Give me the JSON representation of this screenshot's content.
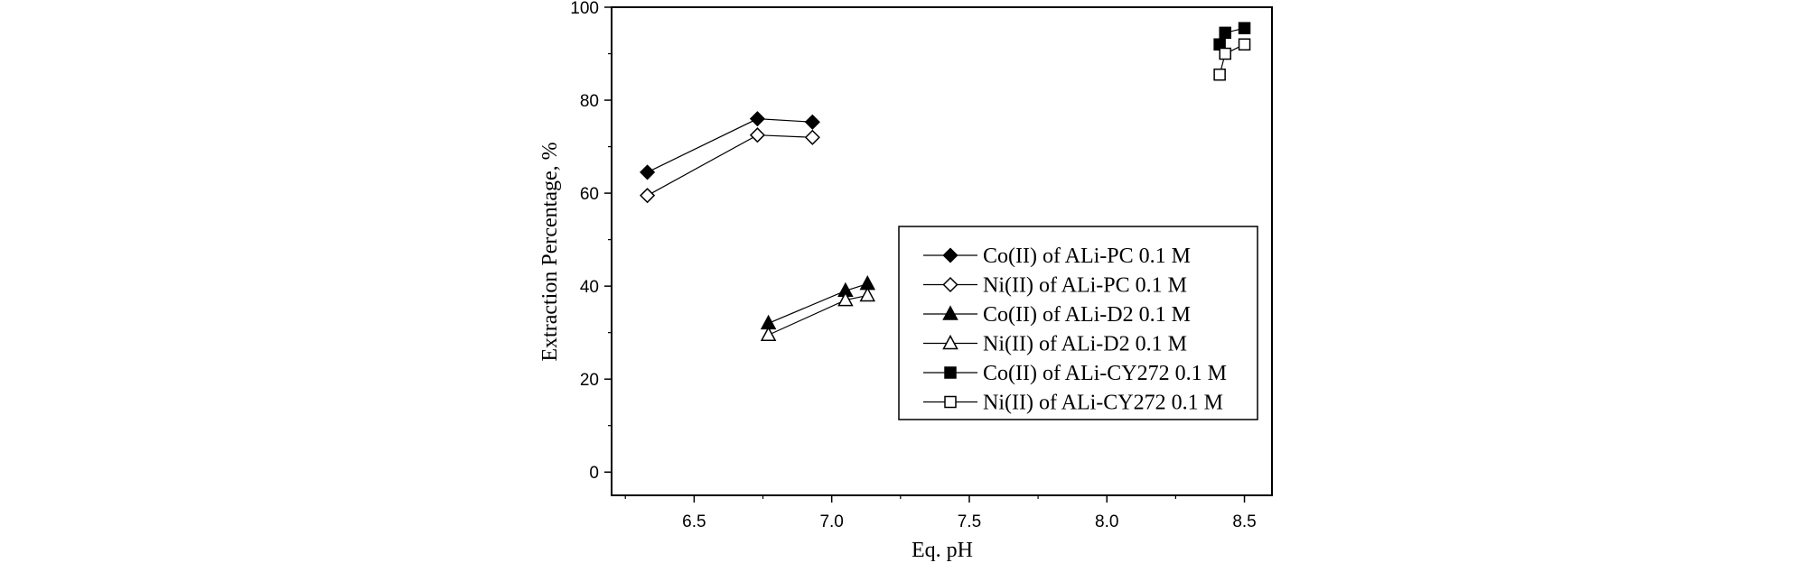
{
  "chart_data": {
    "type": "line",
    "title": "",
    "xlabel": "Eq. pH",
    "ylabel": "Extraction Percentage, %",
    "xlim": [
      6.2,
      8.6
    ],
    "ylim": [
      -5,
      100
    ],
    "xticks": [
      6.5,
      7.0,
      7.5,
      8.0,
      8.5
    ],
    "xtick_labels": [
      "6.5",
      "7.0",
      "7.5",
      "8.0",
      "8.5"
    ],
    "yticks": [
      0,
      20,
      40,
      60,
      80,
      100
    ],
    "ytick_labels": [
      "0",
      "20",
      "40",
      "60",
      "80",
      "100"
    ],
    "grid": false,
    "legend_position": "center-right",
    "series": [
      {
        "name": "Co(II) of ALi-PC 0.1 M",
        "marker": "diamond",
        "filled": true,
        "x": [
          6.33,
          6.73,
          6.93
        ],
        "y": [
          64.5,
          76.0,
          75.3
        ]
      },
      {
        "name": "Ni(II) of ALi-PC 0.1 M",
        "marker": "diamond",
        "filled": false,
        "x": [
          6.33,
          6.73,
          6.93
        ],
        "y": [
          59.5,
          72.5,
          72.0
        ]
      },
      {
        "name": "Co(II) of ALi-D2 0.1 M",
        "marker": "triangle",
        "filled": true,
        "x": [
          6.77,
          7.05,
          7.13
        ],
        "y": [
          32.0,
          39.0,
          40.5
        ]
      },
      {
        "name": "Ni(II) of ALi-D2 0.1 M",
        "marker": "triangle",
        "filled": false,
        "x": [
          6.77,
          7.05,
          7.13
        ],
        "y": [
          29.5,
          37.0,
          38.0
        ]
      },
      {
        "name": "Co(II) of ALi-CY272 0.1 M",
        "marker": "square",
        "filled": true,
        "x": [
          8.41,
          8.43,
          8.5
        ],
        "y": [
          92.0,
          94.5,
          95.5
        ]
      },
      {
        "name": "Ni(II) of ALi-CY272 0.1 M",
        "marker": "square",
        "filled": false,
        "x": [
          8.41,
          8.43,
          8.5
        ],
        "y": [
          85.5,
          90.0,
          92.0
        ]
      }
    ]
  }
}
